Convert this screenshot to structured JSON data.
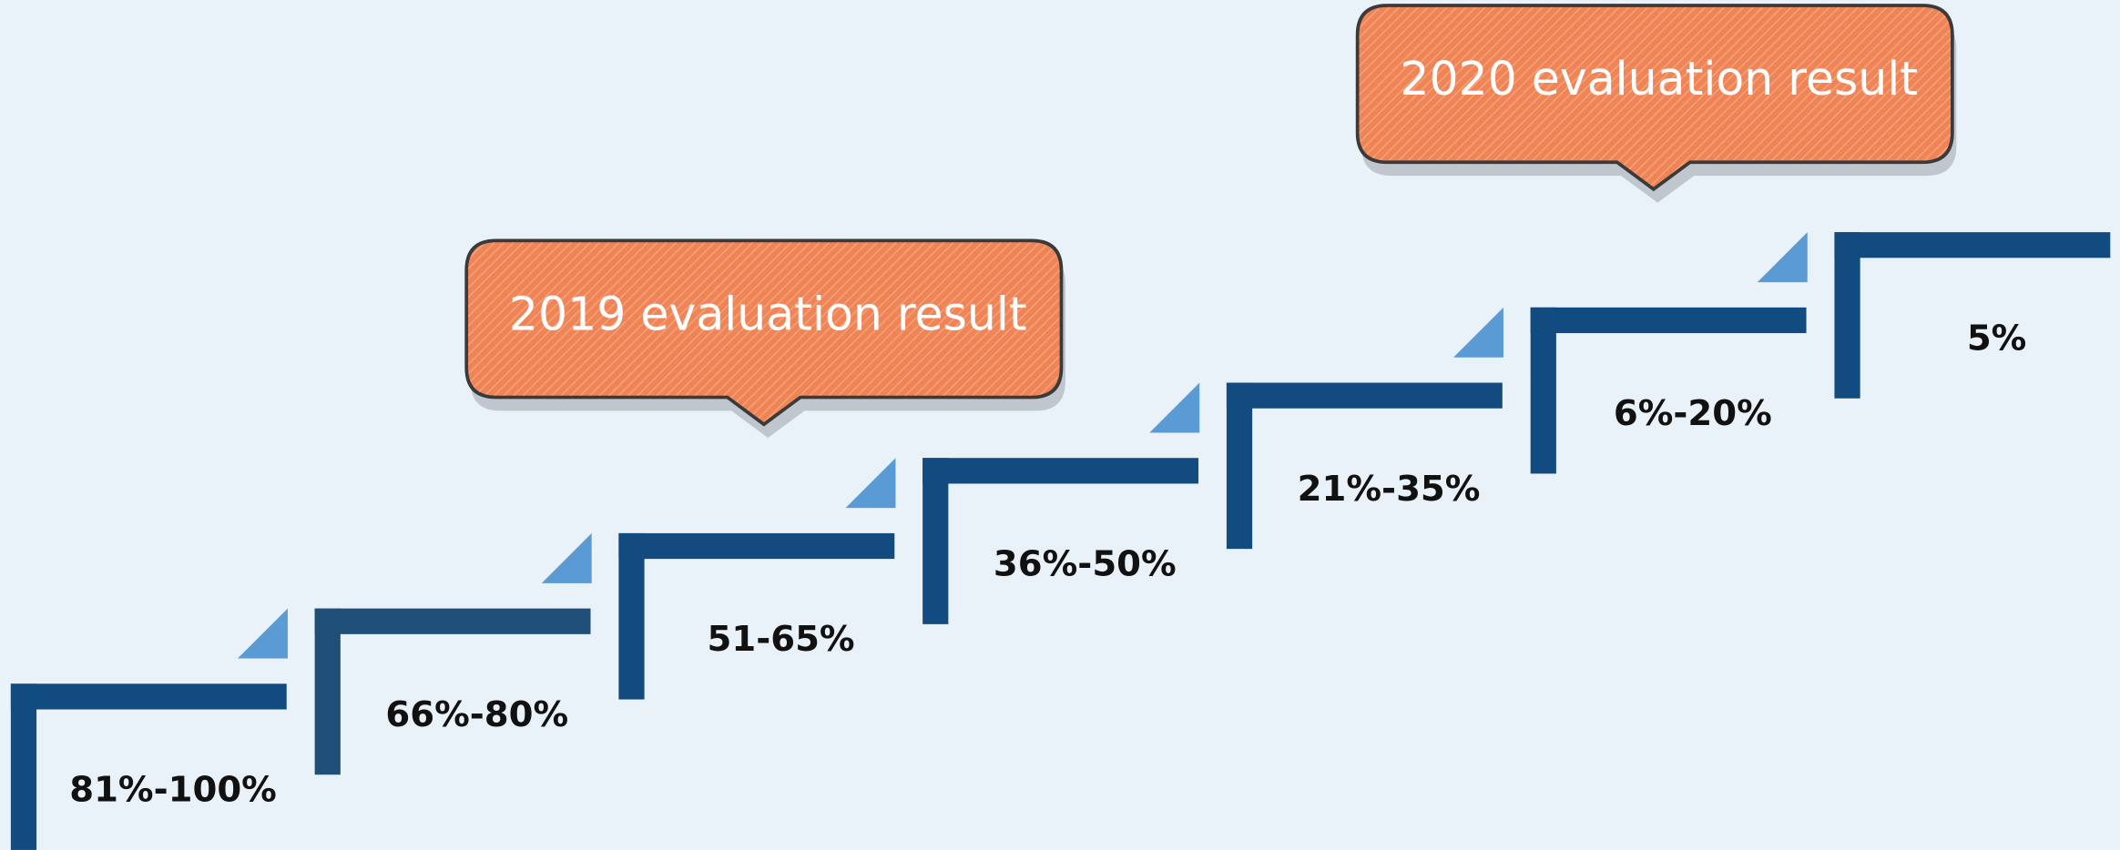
{
  "steps": [
    {
      "label": "81%-100%"
    },
    {
      "label": "66%-80%"
    },
    {
      "label": "51-65%"
    },
    {
      "label": "36%-50%"
    },
    {
      "label": "21%-35%"
    },
    {
      "label": "6%-20%"
    },
    {
      "label": "5%"
    }
  ],
  "callouts": [
    {
      "text": "2019 evaluation result"
    },
    {
      "text": "2020 evaluation result"
    }
  ]
}
